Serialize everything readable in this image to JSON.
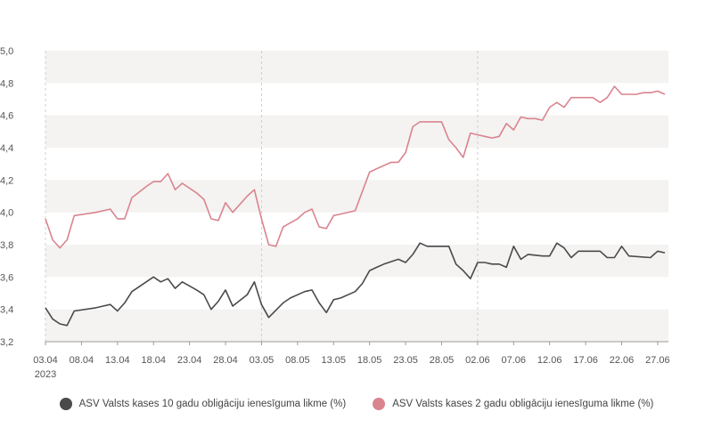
{
  "colors": {
    "series_10y": "#4a4a4a",
    "series_2y": "#d9848f",
    "band": "#f4f3f1",
    "axis": "#cfcfcf"
  },
  "chart_data": {
    "type": "line",
    "y_ticks": [
      "5,0",
      "4,8",
      "4,6",
      "4,4",
      "4,2",
      "4,0",
      "3,8",
      "3,6",
      "3,4",
      "3,2"
    ],
    "ylim": [
      3.2,
      5.0
    ],
    "grid": "alternating horizontal bands, dashed vertical lines at 03.05 and 02.06",
    "legend_position": "bottom-center",
    "x_ticks": [
      {
        "label": "03.04",
        "sub": "2023",
        "day": 0
      },
      {
        "label": "08.04",
        "day": 5
      },
      {
        "label": "13.04",
        "day": 10
      },
      {
        "label": "18.04",
        "day": 15
      },
      {
        "label": "23.04",
        "day": 20
      },
      {
        "label": "28.04",
        "day": 25
      },
      {
        "label": "03.05",
        "day": 30
      },
      {
        "label": "08.05",
        "day": 35
      },
      {
        "label": "13.05",
        "day": 40
      },
      {
        "label": "18.05",
        "day": 45
      },
      {
        "label": "23.05",
        "day": 50
      },
      {
        "label": "28.05",
        "day": 55
      },
      {
        "label": "02.06",
        "day": 60
      },
      {
        "label": "07.06",
        "day": 65
      },
      {
        "label": "12.06",
        "day": 70
      },
      {
        "label": "17.06",
        "day": 75
      },
      {
        "label": "22.06",
        "day": 80
      },
      {
        "label": "27.06",
        "day": 85
      }
    ],
    "series": [
      {
        "name": "ASV Valsts kases 10 gadu obligāciju ienesīguma likme (%)",
        "color": "#4a4a4a",
        "points": [
          [
            "03.04",
            3.41
          ],
          [
            "04.04",
            3.34
          ],
          [
            "05.04",
            3.31
          ],
          [
            "06.04",
            3.3
          ],
          [
            "07.04",
            3.39
          ],
          [
            "10.04",
            3.41
          ],
          [
            "11.04",
            3.42
          ],
          [
            "12.04",
            3.43
          ],
          [
            "13.04",
            3.39
          ],
          [
            "14.04",
            3.44
          ],
          [
            "15.04",
            3.51
          ],
          [
            "17.04",
            3.57
          ],
          [
            "18.04",
            3.6
          ],
          [
            "19.04",
            3.57
          ],
          [
            "20.04",
            3.59
          ],
          [
            "21.04",
            3.53
          ],
          [
            "22.04",
            3.57
          ],
          [
            "24.04",
            3.52
          ],
          [
            "25.04",
            3.49
          ],
          [
            "26.04",
            3.4
          ],
          [
            "27.04",
            3.45
          ],
          [
            "28.04",
            3.52
          ],
          [
            "29.04",
            3.42
          ],
          [
            "01.05",
            3.49
          ],
          [
            "02.05",
            3.57
          ],
          [
            "03.05",
            3.43
          ],
          [
            "04.05",
            3.35
          ],
          [
            "06.05",
            3.44
          ],
          [
            "07.05",
            3.47
          ],
          [
            "08.05",
            3.49
          ],
          [
            "09.05",
            3.51
          ],
          [
            "10.05",
            3.52
          ],
          [
            "11.05",
            3.44
          ],
          [
            "12.05",
            3.38
          ],
          [
            "13.05",
            3.46
          ],
          [
            "14.05",
            3.47
          ],
          [
            "16.05",
            3.51
          ],
          [
            "17.05",
            3.56
          ],
          [
            "18.05",
            3.64
          ],
          [
            "19.05",
            3.66
          ],
          [
            "20.05",
            3.68
          ],
          [
            "22.05",
            3.71
          ],
          [
            "23.05",
            3.69
          ],
          [
            "24.05",
            3.74
          ],
          [
            "25.05",
            3.81
          ],
          [
            "26.05",
            3.79
          ],
          [
            "27.05",
            3.79
          ],
          [
            "28.05",
            3.79
          ],
          [
            "29.05",
            3.79
          ],
          [
            "30.05",
            3.68
          ],
          [
            "31.05",
            3.64
          ],
          [
            "01.06",
            3.59
          ],
          [
            "02.06",
            3.69
          ],
          [
            "03.06",
            3.69
          ],
          [
            "04.06",
            3.68
          ],
          [
            "05.06",
            3.68
          ],
          [
            "06.06",
            3.66
          ],
          [
            "07.06",
            3.79
          ],
          [
            "08.06",
            3.71
          ],
          [
            "09.06",
            3.74
          ],
          [
            "11.06",
            3.73
          ],
          [
            "12.06",
            3.73
          ],
          [
            "13.06",
            3.81
          ],
          [
            "14.06",
            3.78
          ],
          [
            "15.06",
            3.72
          ],
          [
            "16.06",
            3.76
          ],
          [
            "17.06",
            3.76
          ],
          [
            "19.06",
            3.76
          ],
          [
            "20.06",
            3.72
          ],
          [
            "21.06",
            3.72
          ],
          [
            "22.06",
            3.79
          ],
          [
            "23.06",
            3.73
          ],
          [
            "26.06",
            3.72
          ],
          [
            "27.06",
            3.76
          ],
          [
            "28.06",
            3.75
          ]
        ]
      },
      {
        "name": "ASV Valsts kases 2 gadu obligāciju ienesīguma likme (%)",
        "color": "#d9848f",
        "points": [
          [
            "03.04",
            3.96
          ],
          [
            "04.04",
            3.83
          ],
          [
            "05.04",
            3.78
          ],
          [
            "06.04",
            3.83
          ],
          [
            "07.04",
            3.98
          ],
          [
            "10.04",
            4.0
          ],
          [
            "11.04",
            4.01
          ],
          [
            "12.04",
            4.02
          ],
          [
            "13.04",
            3.96
          ],
          [
            "14.04",
            3.96
          ],
          [
            "15.04",
            4.09
          ],
          [
            "17.04",
            4.16
          ],
          [
            "18.04",
            4.19
          ],
          [
            "19.04",
            4.19
          ],
          [
            "20.04",
            4.24
          ],
          [
            "21.04",
            4.14
          ],
          [
            "22.04",
            4.18
          ],
          [
            "24.04",
            4.12
          ],
          [
            "25.04",
            4.08
          ],
          [
            "26.04",
            3.96
          ],
          [
            "27.04",
            3.95
          ],
          [
            "28.04",
            4.06
          ],
          [
            "29.04",
            4.0
          ],
          [
            "01.05",
            4.1
          ],
          [
            "02.05",
            4.14
          ],
          [
            "03.05",
            3.96
          ],
          [
            "04.05",
            3.8
          ],
          [
            "05.05",
            3.79
          ],
          [
            "06.05",
            3.91
          ],
          [
            "08.05",
            3.96
          ],
          [
            "09.05",
            4.0
          ],
          [
            "10.05",
            4.02
          ],
          [
            "11.05",
            3.91
          ],
          [
            "12.05",
            3.9
          ],
          [
            "13.05",
            3.98
          ],
          [
            "14.05",
            3.99
          ],
          [
            "16.05",
            4.01
          ],
          [
            "17.05",
            4.13
          ],
          [
            "18.05",
            4.25
          ],
          [
            "19.05",
            4.27
          ],
          [
            "20.05",
            4.29
          ],
          [
            "21.05",
            4.31
          ],
          [
            "22.05",
            4.31
          ],
          [
            "23.05",
            4.37
          ],
          [
            "24.05",
            4.53
          ],
          [
            "25.05",
            4.56
          ],
          [
            "26.05",
            4.56
          ],
          [
            "27.05",
            4.56
          ],
          [
            "28.05",
            4.56
          ],
          [
            "29.05",
            4.45
          ],
          [
            "30.05",
            4.4
          ],
          [
            "31.05",
            4.34
          ],
          [
            "01.06",
            4.49
          ],
          [
            "02.06",
            4.48
          ],
          [
            "03.06",
            4.47
          ],
          [
            "04.06",
            4.46
          ],
          [
            "05.06",
            4.47
          ],
          [
            "06.06",
            4.55
          ],
          [
            "07.06",
            4.51
          ],
          [
            "08.06",
            4.59
          ],
          [
            "09.06",
            4.58
          ],
          [
            "10.06",
            4.58
          ],
          [
            "11.06",
            4.57
          ],
          [
            "12.06",
            4.65
          ],
          [
            "13.06",
            4.68
          ],
          [
            "14.06",
            4.65
          ],
          [
            "15.06",
            4.71
          ],
          [
            "16.06",
            4.71
          ],
          [
            "18.06",
            4.71
          ],
          [
            "19.06",
            4.68
          ],
          [
            "20.06",
            4.71
          ],
          [
            "21.06",
            4.78
          ],
          [
            "22.06",
            4.73
          ],
          [
            "24.06",
            4.73
          ],
          [
            "25.06",
            4.74
          ],
          [
            "26.06",
            4.74
          ],
          [
            "27.06",
            4.75
          ],
          [
            "28.06",
            4.73
          ]
        ]
      }
    ]
  }
}
